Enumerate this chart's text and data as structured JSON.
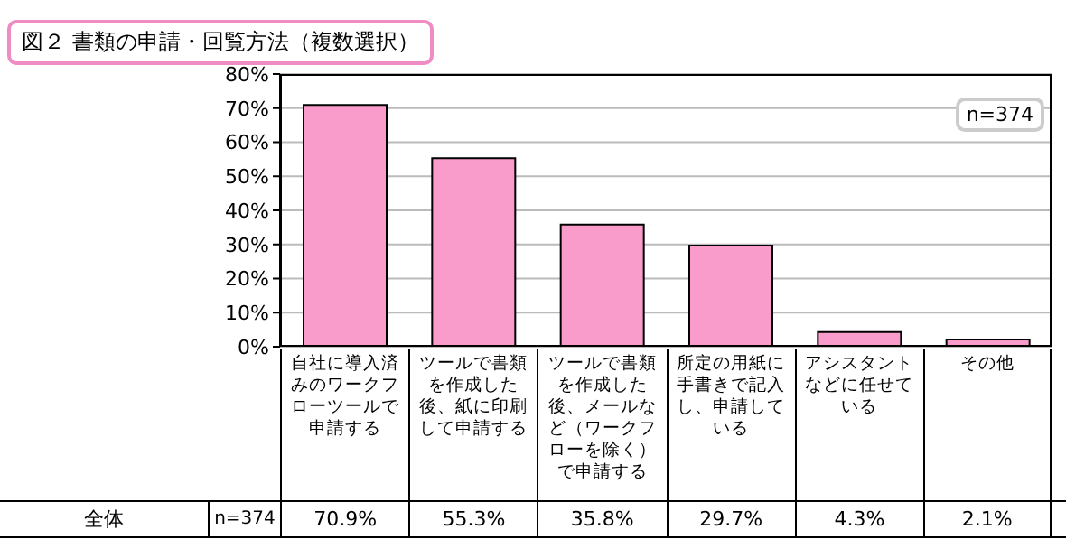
{
  "chart_data": {
    "type": "bar",
    "title": "図２ 書類の申請・回覧方法（複数選択）",
    "categories": [
      "自社に導入済みのワークフローツールで申請する",
      "ツールで書類を作成した後、紙に印刷して申請する",
      "ツールで書類を作成した後、メールなど（ワークフローを除く）で申請する",
      "所定の用紙に手書きで記入し、申請している",
      "アシスタントなどに任せている",
      "その他"
    ],
    "values": [
      70.9,
      55.3,
      35.8,
      29.7,
      4.3,
      2.1
    ],
    "value_labels": [
      "70.9%",
      "55.3%",
      "35.8%",
      "29.7%",
      "4.3%",
      "2.1%"
    ],
    "color": "#f99ccc",
    "ylim": [
      0,
      80
    ],
    "yticks": [
      {
        "value": 0,
        "label": "0%"
      },
      {
        "value": 10,
        "label": "10%"
      },
      {
        "value": 20,
        "label": "20%"
      },
      {
        "value": 30,
        "label": "30%"
      },
      {
        "value": 40,
        "label": "40%"
      },
      {
        "value": 50,
        "label": "50%"
      },
      {
        "value": 60,
        "label": "60%"
      },
      {
        "value": 70,
        "label": "70%"
      },
      {
        "value": 80,
        "label": "80%"
      }
    ],
    "grid": "y",
    "annotations": [
      "n=374",
      "全体",
      "n=374"
    ]
  }
}
